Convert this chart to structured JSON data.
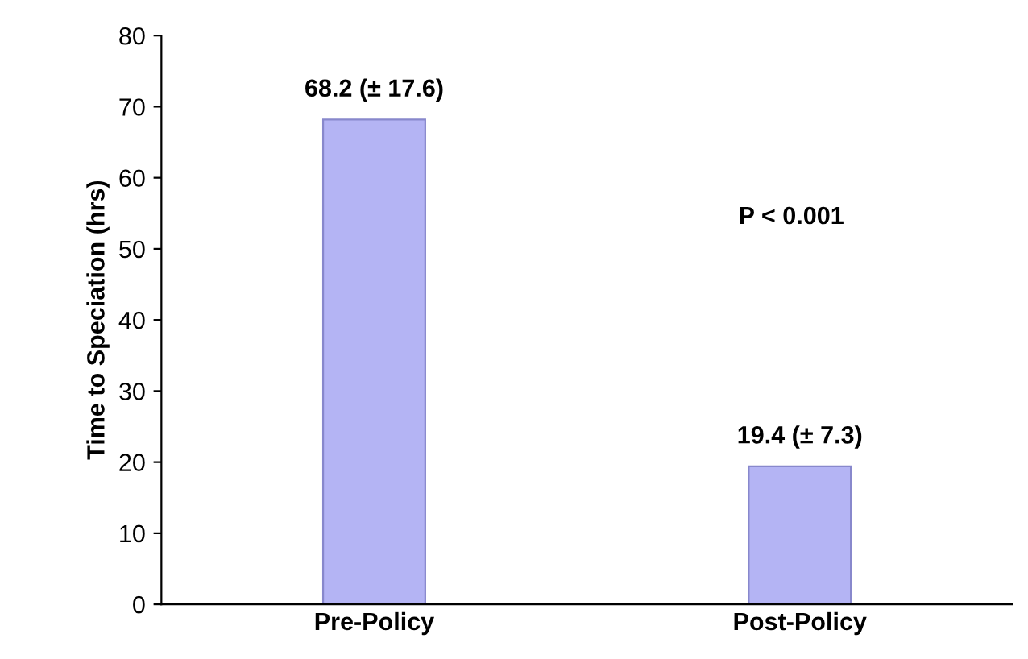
{
  "chart_data": {
    "type": "bar",
    "ylabel": "Time to Speciation (hrs)",
    "categories": [
      "Pre-Policy",
      "Post-Policy"
    ],
    "values": [
      68.2,
      19.4
    ],
    "color": "#b4b4f4",
    "value_labels": [
      "68.2 (± 17.6)",
      "19.4 (± 7.3)"
    ],
    "annotations": [
      "P < 0.001"
    ],
    "ylim": [
      0,
      80
    ],
    "yticks": [
      0,
      10,
      20,
      30,
      40,
      50,
      60,
      70,
      80
    ],
    "grid": false,
    "legend": false
  }
}
